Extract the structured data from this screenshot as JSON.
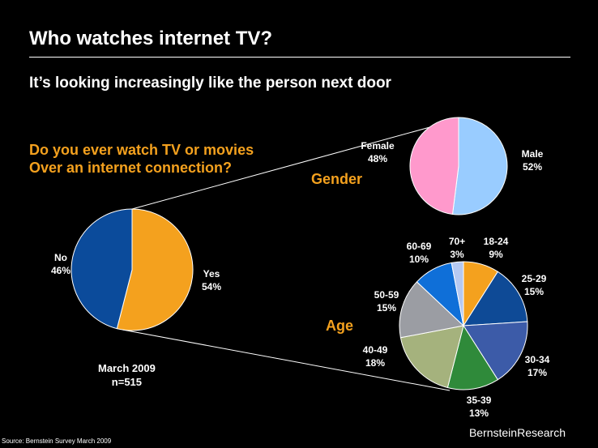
{
  "slide": {
    "title": "Who watches internet TV?",
    "subtitle": "It’s looking increasingly like the person next door",
    "question_line1": "Do you ever watch TV or movies",
    "question_line2": "Over an internet connection?",
    "gender_heading": "Gender",
    "age_heading": "Age",
    "date": "March 2009",
    "sample": "n=515",
    "source": "Source: Bernstein Survey March 2009",
    "brand": "BernsteinResearch"
  },
  "chart_data": [
    {
      "type": "pie",
      "title": "Do you ever watch TV or movies Over an internet connection?",
      "slices": [
        {
          "label": "Yes",
          "value": 54,
          "pct": "54%",
          "color": "#f4a11e"
        },
        {
          "label": "No",
          "value": 46,
          "pct": "46%",
          "color": "#0b4b9b"
        }
      ]
    },
    {
      "type": "pie",
      "title": "Gender",
      "slices": [
        {
          "label": "Male",
          "value": 52,
          "pct": "52%",
          "color": "#99ccff"
        },
        {
          "label": "Female",
          "value": 48,
          "pct": "48%",
          "color": "#ff99cc"
        }
      ]
    },
    {
      "type": "pie",
      "title": "Age",
      "slices": [
        {
          "label": "18-24",
          "value": 9,
          "pct": "9%",
          "color": "#f4a11e"
        },
        {
          "label": "25-29",
          "value": 15,
          "pct": "15%",
          "color": "#0e4a96"
        },
        {
          "label": "30-34",
          "value": 17,
          "pct": "17%",
          "color": "#3c5ba8"
        },
        {
          "label": "35-39",
          "value": 13,
          "pct": "13%",
          "color": "#2f8a3a"
        },
        {
          "label": "40-49",
          "value": 18,
          "pct": "18%",
          "color": "#a5b27d"
        },
        {
          "label": "50-59",
          "value": 15,
          "pct": "15%",
          "color": "#9b9da3"
        },
        {
          "label": "60-69",
          "value": 10,
          "pct": "10%",
          "color": "#0f6fd8"
        },
        {
          "label": "70+",
          "value": 3,
          "pct": "3%",
          "color": "#b5c9f2"
        }
      ]
    }
  ]
}
